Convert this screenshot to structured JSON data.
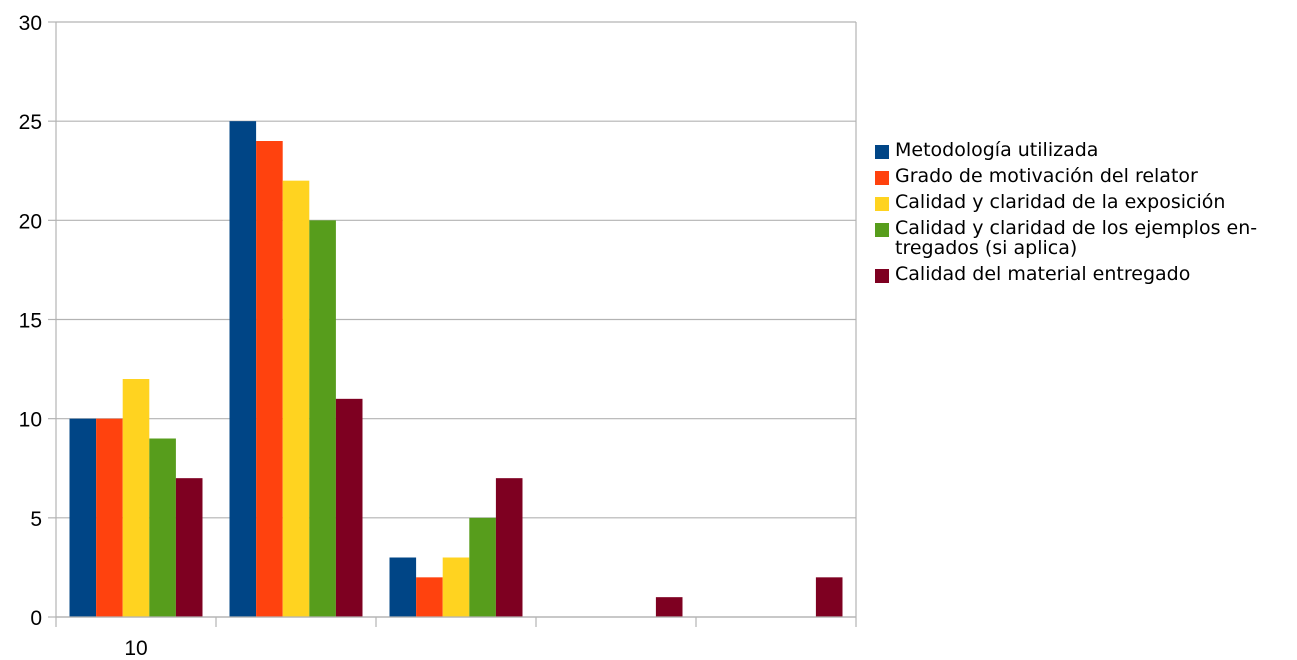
{
  "chart_data": {
    "type": "bar",
    "title": "",
    "xlabel": "",
    "ylabel": "",
    "ylim": [
      0,
      30
    ],
    "yticks": [
      0,
      5,
      10,
      15,
      20,
      25,
      30
    ],
    "categories": [
      "10",
      "",
      "",
      "",
      ""
    ],
    "grid": true,
    "legend_position": "right",
    "series": [
      {
        "name": "Metodología utilizada",
        "color": "#004586",
        "values": [
          10,
          25,
          3,
          0,
          0
        ]
      },
      {
        "name": "Grado de motivación del relator",
        "color": "#ff420e",
        "values": [
          10,
          24,
          2,
          0,
          0
        ]
      },
      {
        "name": "Calidad y claridad de la exposición",
        "color": "#ffd320",
        "values": [
          12,
          22,
          3,
          0,
          0
        ]
      },
      {
        "name": "Calidad y claridad de los ejemplos en-tregados (si aplica)",
        "color": "#579d1c",
        "values": [
          9,
          20,
          5,
          0,
          0
        ]
      },
      {
        "name": "Calidad del material  entregado",
        "color": "#7e0021",
        "values": [
          7,
          11,
          7,
          1,
          2
        ]
      }
    ]
  }
}
